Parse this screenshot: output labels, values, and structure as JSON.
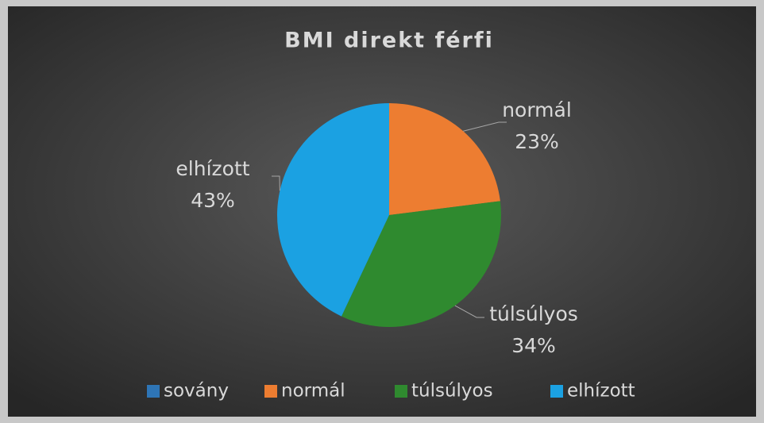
{
  "chart_data": {
    "type": "pie",
    "title": "BMI direkt férfi",
    "categories": [
      "sovány",
      "normál",
      "túlsúlyos",
      "elhízott"
    ],
    "values": [
      0,
      23,
      34,
      43
    ],
    "value_labels": [
      null,
      "23%",
      "34%",
      "43%"
    ],
    "colors": [
      "#2e75b6",
      "#ed7d31",
      "#2f8a2f",
      "#1ba1e2"
    ],
    "legend": "bottom"
  }
}
